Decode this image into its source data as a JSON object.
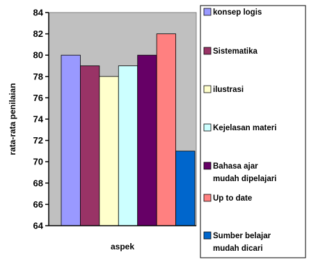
{
  "chart_data": {
    "type": "bar",
    "xlabel": "aspek",
    "ylabel": "rata-rata penilaian",
    "ylim": [
      64,
      84
    ],
    "y_ticks": [
      64,
      66,
      68,
      70,
      72,
      74,
      76,
      78,
      80,
      82,
      84
    ],
    "grid": false,
    "plot_background": "#c0c0c0",
    "legend_position": "right",
    "series": [
      {
        "name": "konsep logis",
        "value": 80,
        "color": "#9999ff"
      },
      {
        "name": "Sistematika",
        "value": 79,
        "color": "#993366"
      },
      {
        "name": "ilustrasi",
        "value": 78,
        "color": "#ffffcc"
      },
      {
        "name": "Kejelasan materi",
        "value": 79,
        "color": "#ccffff"
      },
      {
        "name": "Bahasa ajar mudah dipelajari",
        "legend_lines": [
          "Bahasa ajar",
          "mudah dipelajari"
        ],
        "value": 80,
        "color": "#660066"
      },
      {
        "name": "Up to date",
        "value": 82,
        "color": "#ff8080"
      },
      {
        "name": "Sumber belajar mudah dicari",
        "legend_lines": [
          "Sumber belajar",
          "mudah dicari"
        ],
        "value": 71,
        "color": "#0066cc"
      }
    ]
  }
}
